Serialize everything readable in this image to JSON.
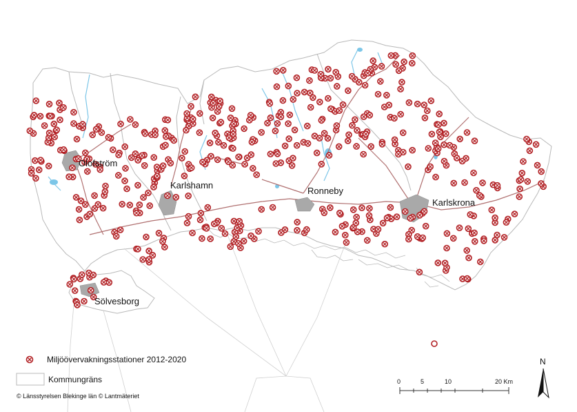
{
  "map": {
    "cities": [
      "Olofström",
      "Karlshamn",
      "Ronneby",
      "Karlskrona",
      "Sölvesborg"
    ],
    "legend": {
      "stations_label": "Miljöövervakningsstationer 2012-2020",
      "border_label": "Kommungräns"
    },
    "copyright": "© Länsstyrelsen Blekinge län © Lantmäteriet",
    "scale": {
      "labels": [
        "0",
        "5",
        "10",
        "20 Km"
      ],
      "values_km": [
        0,
        5,
        10,
        20
      ]
    },
    "north_label": "N",
    "colors": {
      "station": "#b22024",
      "border": "#b8b8b8",
      "road": "#b07070",
      "water": "#7cc6e8",
      "urban": "#a9a9a9"
    },
    "icons": {
      "station": "circled-x-marker",
      "north": "north-arrow"
    }
  }
}
